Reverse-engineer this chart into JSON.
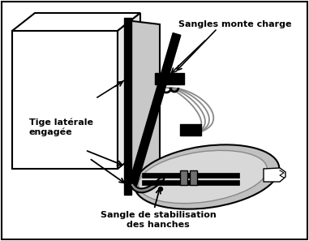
{
  "bg_color": "#ffffff",
  "label_sangles": "Sangles monte charge",
  "label_tige": "Tige latérale\nengagée",
  "label_sangle_bas": "Sangle de stabilisation\ndes hanches"
}
